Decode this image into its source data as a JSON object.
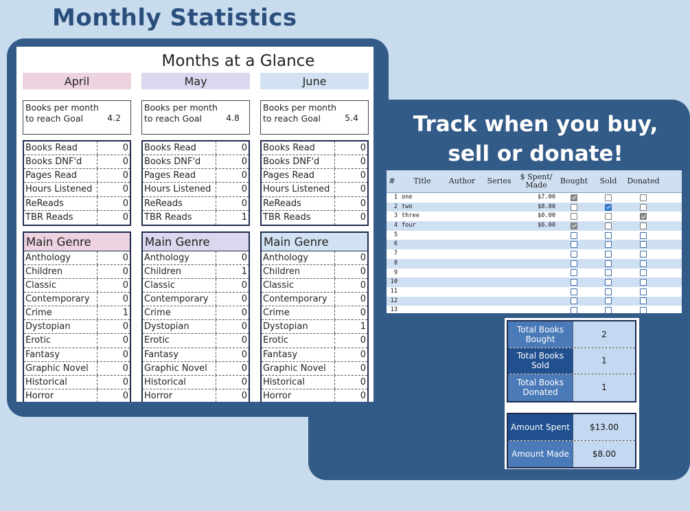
{
  "page_title": "Monthly Statistics",
  "glance": {
    "title": "Months at a Glance",
    "goal_label": "Books per month to reach Goal",
    "genre_header": "Main Genre",
    "stat_labels": [
      "Books Read",
      "Books DNF'd",
      "Pages Read",
      "Hours Listened",
      "ReReads",
      "TBR Reads"
    ],
    "genre_labels": [
      "Anthology",
      "Children",
      "Classic",
      "Contemporary",
      "Crime",
      "Dystopian",
      "Erotic",
      "Fantasy",
      "Graphic Novel",
      "Historical",
      "Horror"
    ],
    "months": [
      {
        "name": "April",
        "color": "#ecd3df",
        "goal": "4.2",
        "stats": [
          "0",
          "0",
          "0",
          "0",
          "0",
          "0"
        ],
        "genres": [
          "0",
          "0",
          "0",
          "0",
          "1",
          "0",
          "0",
          "0",
          "0",
          "0",
          "0"
        ]
      },
      {
        "name": "May",
        "color": "#dcd6ee",
        "goal": "4.8",
        "stats": [
          "0",
          "0",
          "0",
          "0",
          "0",
          "1"
        ],
        "genres": [
          "0",
          "1",
          "0",
          "0",
          "0",
          "0",
          "0",
          "0",
          "0",
          "0",
          "0"
        ]
      },
      {
        "name": "June",
        "color": "#d3e2f3",
        "goal": "5.4",
        "stats": [
          "0",
          "0",
          "0",
          "0",
          "0",
          "0"
        ],
        "genres": [
          "0",
          "0",
          "0",
          "0",
          "0",
          "1",
          "0",
          "0",
          "0",
          "0",
          "0"
        ]
      }
    ]
  },
  "tracker": {
    "title_line1": "Track when you buy,",
    "title_line2": "sell or donate!",
    "columns": [
      "#",
      "Title",
      "Author",
      "Series",
      "$ Spent/ Made",
      "Bought",
      "Sold",
      "Donated"
    ],
    "rows": [
      {
        "num": "1",
        "title": "one",
        "amount": "$7.00",
        "bought": true,
        "sold": false,
        "donated": false
      },
      {
        "num": "2",
        "title": "two",
        "amount": "$8.00",
        "bought": false,
        "sold": true,
        "donated": false
      },
      {
        "num": "3",
        "title": "three",
        "amount": "$0.00",
        "bought": false,
        "sold": false,
        "donated": true
      },
      {
        "num": "4",
        "title": "four",
        "amount": "$6.00",
        "bought": true,
        "sold": false,
        "donated": false
      },
      {
        "num": "5",
        "title": "",
        "amount": "",
        "bought": false,
        "sold": false,
        "donated": false
      },
      {
        "num": "6",
        "title": "",
        "amount": "",
        "bought": false,
        "sold": false,
        "donated": false
      },
      {
        "num": "7",
        "title": "",
        "amount": "",
        "bought": false,
        "sold": false,
        "donated": false
      },
      {
        "num": "8",
        "title": "",
        "amount": "",
        "bought": false,
        "sold": false,
        "donated": false
      },
      {
        "num": "9",
        "title": "",
        "amount": "",
        "bought": false,
        "sold": false,
        "donated": false
      },
      {
        "num": "10",
        "title": "",
        "amount": "",
        "bought": false,
        "sold": false,
        "donated": false
      },
      {
        "num": "11",
        "title": "",
        "amount": "",
        "bought": false,
        "sold": false,
        "donated": false
      },
      {
        "num": "12",
        "title": "",
        "amount": "",
        "bought": false,
        "sold": false,
        "donated": false
      },
      {
        "num": "13",
        "title": "",
        "amount": "",
        "bought": false,
        "sold": false,
        "donated": false
      }
    ]
  },
  "summary": {
    "counts": [
      {
        "label": "Total Books Bought",
        "value": "2",
        "color": "#4a7ab7"
      },
      {
        "label": "Total Books Sold",
        "value": "1",
        "color": "#20508f"
      },
      {
        "label": "Total Books Donated",
        "value": "1",
        "color": "#4a7ab7"
      }
    ],
    "money": [
      {
        "label": "Amount Spent",
        "value": "$13.00",
        "color": "#20508f"
      },
      {
        "label": "Amount Made",
        "value": "$8.00",
        "color": "#4a7ab7"
      }
    ]
  }
}
